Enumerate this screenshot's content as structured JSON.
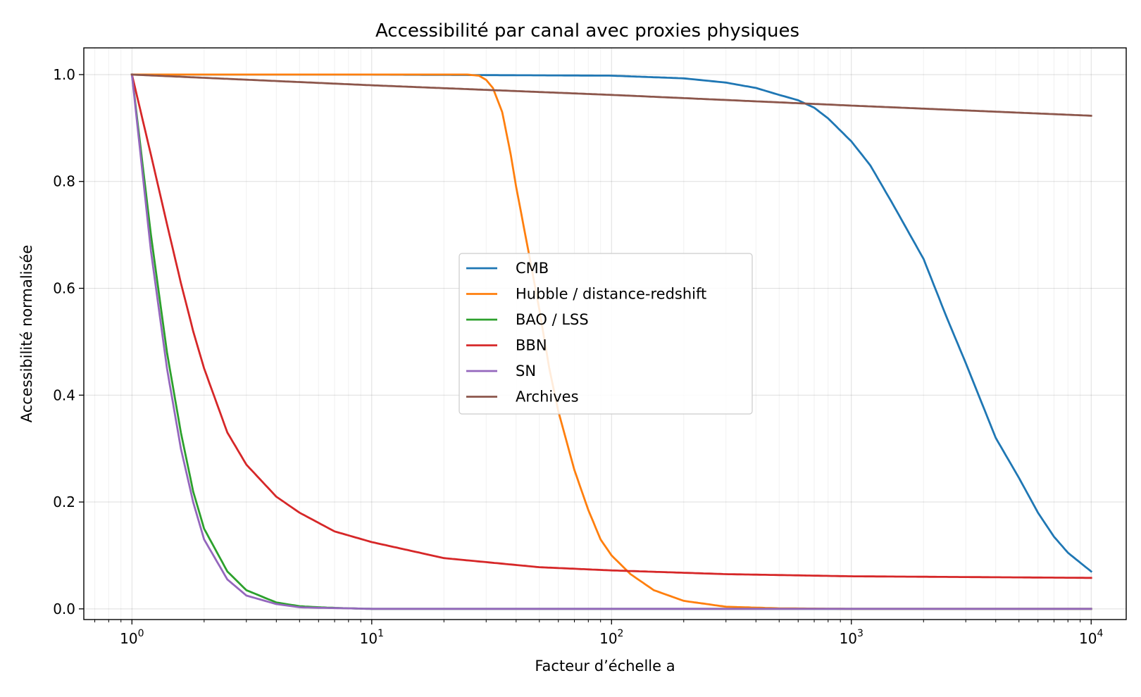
{
  "chart_data": {
    "type": "line",
    "title": "Accessibilité par canal avec proxies physiques",
    "xlabel": "Facteur d’échelle a",
    "ylabel": "Accessibilité normalisée",
    "x_scale": "log",
    "xlim": [
      0.63,
      14000
    ],
    "ylim": [
      -0.02,
      1.05
    ],
    "grid": true,
    "legend_position": "center",
    "x_tick_labels": [
      {
        "value": 1,
        "base": "10",
        "exp": "0"
      },
      {
        "value": 10,
        "base": "10",
        "exp": "1"
      },
      {
        "value": 100,
        "base": "10",
        "exp": "2"
      },
      {
        "value": 1000,
        "base": "10",
        "exp": "3"
      },
      {
        "value": 10000,
        "base": "10",
        "exp": "4"
      }
    ],
    "y_ticks": [
      0.0,
      0.2,
      0.4,
      0.6,
      0.8,
      1.0
    ],
    "y_tick_labels": [
      "0.0",
      "0.2",
      "0.4",
      "0.6",
      "0.8",
      "1.0"
    ],
    "series": [
      {
        "name": "CMB",
        "color": "#1f77b4",
        "x": [
          1,
          10,
          100,
          200,
          300,
          400,
          500,
          600,
          700,
          800,
          1000,
          1200,
          1500,
          2000,
          2500,
          3000,
          3500,
          4000,
          5000,
          6000,
          7000,
          8000,
          10000
        ],
        "y": [
          1.0,
          1.0,
          0.998,
          0.993,
          0.985,
          0.975,
          0.962,
          0.952,
          0.938,
          0.918,
          0.875,
          0.83,
          0.755,
          0.655,
          0.545,
          0.46,
          0.385,
          0.32,
          0.245,
          0.18,
          0.135,
          0.105,
          0.07
        ]
      },
      {
        "name": "Hubble / distance-redshift",
        "color": "#ff7f0e",
        "x": [
          1,
          10,
          20,
          25,
          28,
          30,
          32,
          35,
          38,
          40,
          45,
          50,
          55,
          60,
          70,
          80,
          90,
          100,
          120,
          150,
          200,
          300,
          500,
          1000,
          10000
        ],
        "y": [
          1.0,
          1.0,
          1.0,
          1.0,
          0.998,
          0.99,
          0.975,
          0.93,
          0.85,
          0.79,
          0.67,
          0.56,
          0.45,
          0.37,
          0.26,
          0.185,
          0.13,
          0.1,
          0.065,
          0.035,
          0.015,
          0.004,
          0.001,
          0.0,
          0.0
        ]
      },
      {
        "name": "BAO / LSS",
        "color": "#2ca02c",
        "x": [
          1,
          1.2,
          1.4,
          1.6,
          1.8,
          2,
          2.5,
          3,
          4,
          5,
          6,
          8,
          10,
          10000
        ],
        "y": [
          1.0,
          0.7,
          0.48,
          0.33,
          0.22,
          0.15,
          0.07,
          0.035,
          0.012,
          0.005,
          0.003,
          0.001,
          0.0,
          0.0
        ]
      },
      {
        "name": "BBN",
        "color": "#d62728",
        "x": [
          1,
          1.2,
          1.4,
          1.6,
          1.8,
          2,
          2.5,
          3,
          4,
          5,
          7,
          10,
          20,
          50,
          100,
          300,
          1000,
          10000
        ],
        "y": [
          1.0,
          0.85,
          0.72,
          0.61,
          0.52,
          0.45,
          0.33,
          0.27,
          0.21,
          0.18,
          0.145,
          0.125,
          0.095,
          0.078,
          0.072,
          0.065,
          0.061,
          0.058
        ]
      },
      {
        "name": "SN",
        "color": "#9467bd",
        "x": [
          1,
          1.2,
          1.4,
          1.6,
          1.8,
          2,
          2.5,
          3,
          4,
          5,
          6,
          8,
          10,
          10000
        ],
        "y": [
          1.0,
          0.67,
          0.45,
          0.3,
          0.2,
          0.13,
          0.055,
          0.025,
          0.009,
          0.003,
          0.002,
          0.001,
          0.0,
          0.0
        ]
      },
      {
        "name": "Archives",
        "color": "#8c564b",
        "x": [
          1,
          10,
          100,
          1000,
          10000
        ],
        "y": [
          1.0,
          0.98,
          0.962,
          0.942,
          0.923
        ]
      }
    ]
  }
}
